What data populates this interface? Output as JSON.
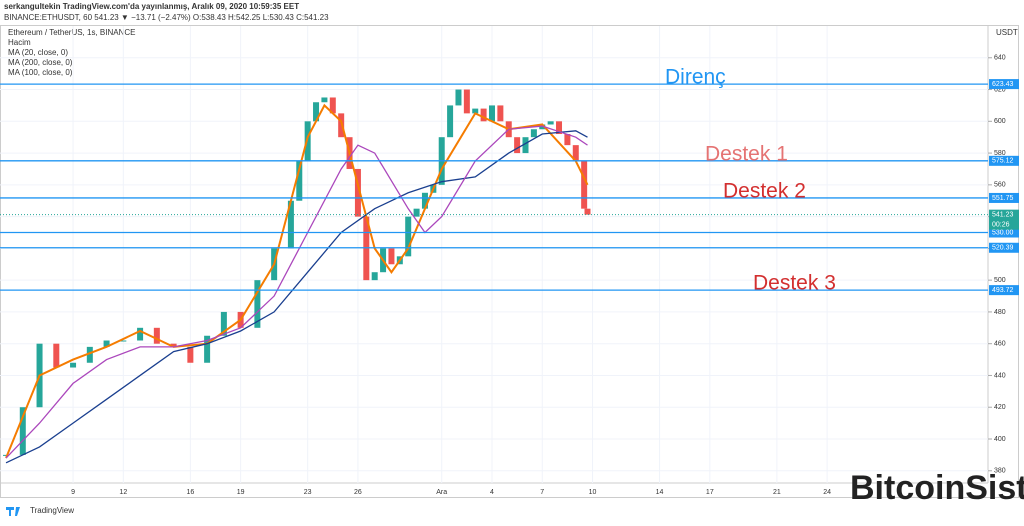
{
  "header": {
    "publisher": "serkangultekin TradingView.com'da yayınlanmış, Aralık 09, 2020 10:59:35 EET",
    "quote": "BINANCE:ETHUSDT, 60  541.23 ▼ −13.71 (−2.47%) O:538.43 H:542.25 L:530.43 C:541.23"
  },
  "legend": [
    "Ethereum / TetherUS, 1s, BINANCE",
    "Hacim"
  ],
  "footer": "TradingView",
  "watermark": "BitcoinSistemi",
  "chart_data": {
    "type": "candlestick",
    "currency": "USDT",
    "xlim": [
      4.64,
      63.6
    ],
    "xticks": [
      {
        "value": 9,
        "label": "9"
      },
      {
        "value": 12,
        "label": "12"
      },
      {
        "value": 16,
        "label": "16"
      },
      {
        "value": 19,
        "label": "19"
      },
      {
        "value": 23,
        "label": "23"
      },
      {
        "value": 26,
        "label": "26"
      },
      {
        "value": 31,
        "label": "Ara"
      },
      {
        "value": 34,
        "label": "4"
      },
      {
        "value": 37,
        "label": "7"
      },
      {
        "value": 40,
        "label": "10"
      },
      {
        "value": 44,
        "label": "14"
      },
      {
        "value": 47,
        "label": "17"
      },
      {
        "value": 51,
        "label": "21"
      },
      {
        "value": 54,
        "label": "24"
      }
    ],
    "ylim": [
      372.3,
      660
    ],
    "yticks": [
      380,
      400,
      420,
      440,
      460,
      480,
      500,
      520,
      540,
      560,
      580,
      600,
      620,
      640
    ],
    "close": {
      "x": [
        5,
        6,
        7,
        8,
        9,
        10,
        11,
        12,
        13,
        14,
        15,
        16,
        17,
        18,
        19,
        20,
        21,
        22,
        22.5,
        23,
        23.5,
        24,
        24.5,
        25,
        25.5,
        26,
        26.5,
        27,
        27.5,
        28,
        28.5,
        29,
        29.5,
        30,
        30.5,
        31,
        31.5,
        32,
        32.5,
        33,
        33.5,
        34,
        34.5,
        35,
        35.5,
        36,
        36.5,
        37,
        37.5,
        38,
        38.5,
        39,
        39.5,
        39.7
      ],
      "values": [
        390,
        420,
        460,
        445,
        448,
        458,
        462,
        462,
        470,
        460,
        458,
        448,
        465,
        480,
        470,
        500,
        520,
        550,
        575,
        600,
        612,
        615,
        605,
        590,
        570,
        540,
        500,
        505,
        520,
        510,
        515,
        540,
        545,
        555,
        560,
        590,
        610,
        620,
        605,
        608,
        600,
        610,
        600,
        590,
        580,
        590,
        595,
        598,
        600,
        592,
        585,
        575,
        545,
        541.23
      ],
      "up_color": "#26a69a",
      "down_color": "#ef5350"
    },
    "series": [
      {
        "name": "MA (20, close, 0)",
        "color": "#f57c00",
        "x": [
          5,
          7,
          9,
          11,
          13,
          15,
          17,
          19,
          21,
          23,
          24,
          25,
          27,
          28,
          29,
          31,
          33,
          35,
          37,
          39,
          39.7
        ],
        "values": [
          388,
          440,
          450,
          458,
          468,
          458,
          460,
          475,
          510,
          590,
          610,
          600,
          520,
          505,
          520,
          570,
          605,
          595,
          598,
          575,
          560
        ]
      },
      {
        "name": "MA (200, close, 0)",
        "color": "#1a3f8f",
        "x": [
          5,
          7,
          9,
          11,
          13,
          15,
          17,
          19,
          21,
          23,
          25,
          27,
          29,
          31,
          33,
          35,
          37,
          39,
          39.7
        ],
        "values": [
          385,
          395,
          410,
          425,
          440,
          455,
          460,
          468,
          480,
          505,
          530,
          545,
          555,
          562,
          565,
          580,
          592,
          594,
          590
        ]
      },
      {
        "name": "MA (100, close, 0)",
        "color": "#ab47bc",
        "x": [
          5,
          7,
          9,
          11,
          13,
          15,
          17,
          19,
          21,
          23,
          25,
          26,
          27,
          29,
          30,
          31,
          33,
          35,
          37,
          39,
          39.7
        ],
        "values": [
          388,
          410,
          435,
          450,
          458,
          458,
          462,
          470,
          490,
          530,
          570,
          585,
          580,
          545,
          530,
          540,
          575,
          595,
          597,
          590,
          585
        ]
      }
    ],
    "levels": [
      623.43,
      575.12,
      551.75,
      {
        "value": 530,
        "label": "530.00"
      },
      520.39,
      493.72
    ],
    "level_color": "#2196f3",
    "last_price": 541.23,
    "countdown": "00:26",
    "annotations": [
      {
        "text": "Direnç",
        "value": 623.43,
        "color": "#2196f3"
      },
      {
        "text": "Destek 1",
        "value": 575.12,
        "color": "#e57373"
      },
      {
        "text": "Destek 2",
        "value": 551.75,
        "color": "#d32f2f"
      },
      {
        "text": "Destek 3",
        "value": 493.72,
        "color": "#d32f2f"
      }
    ]
  }
}
